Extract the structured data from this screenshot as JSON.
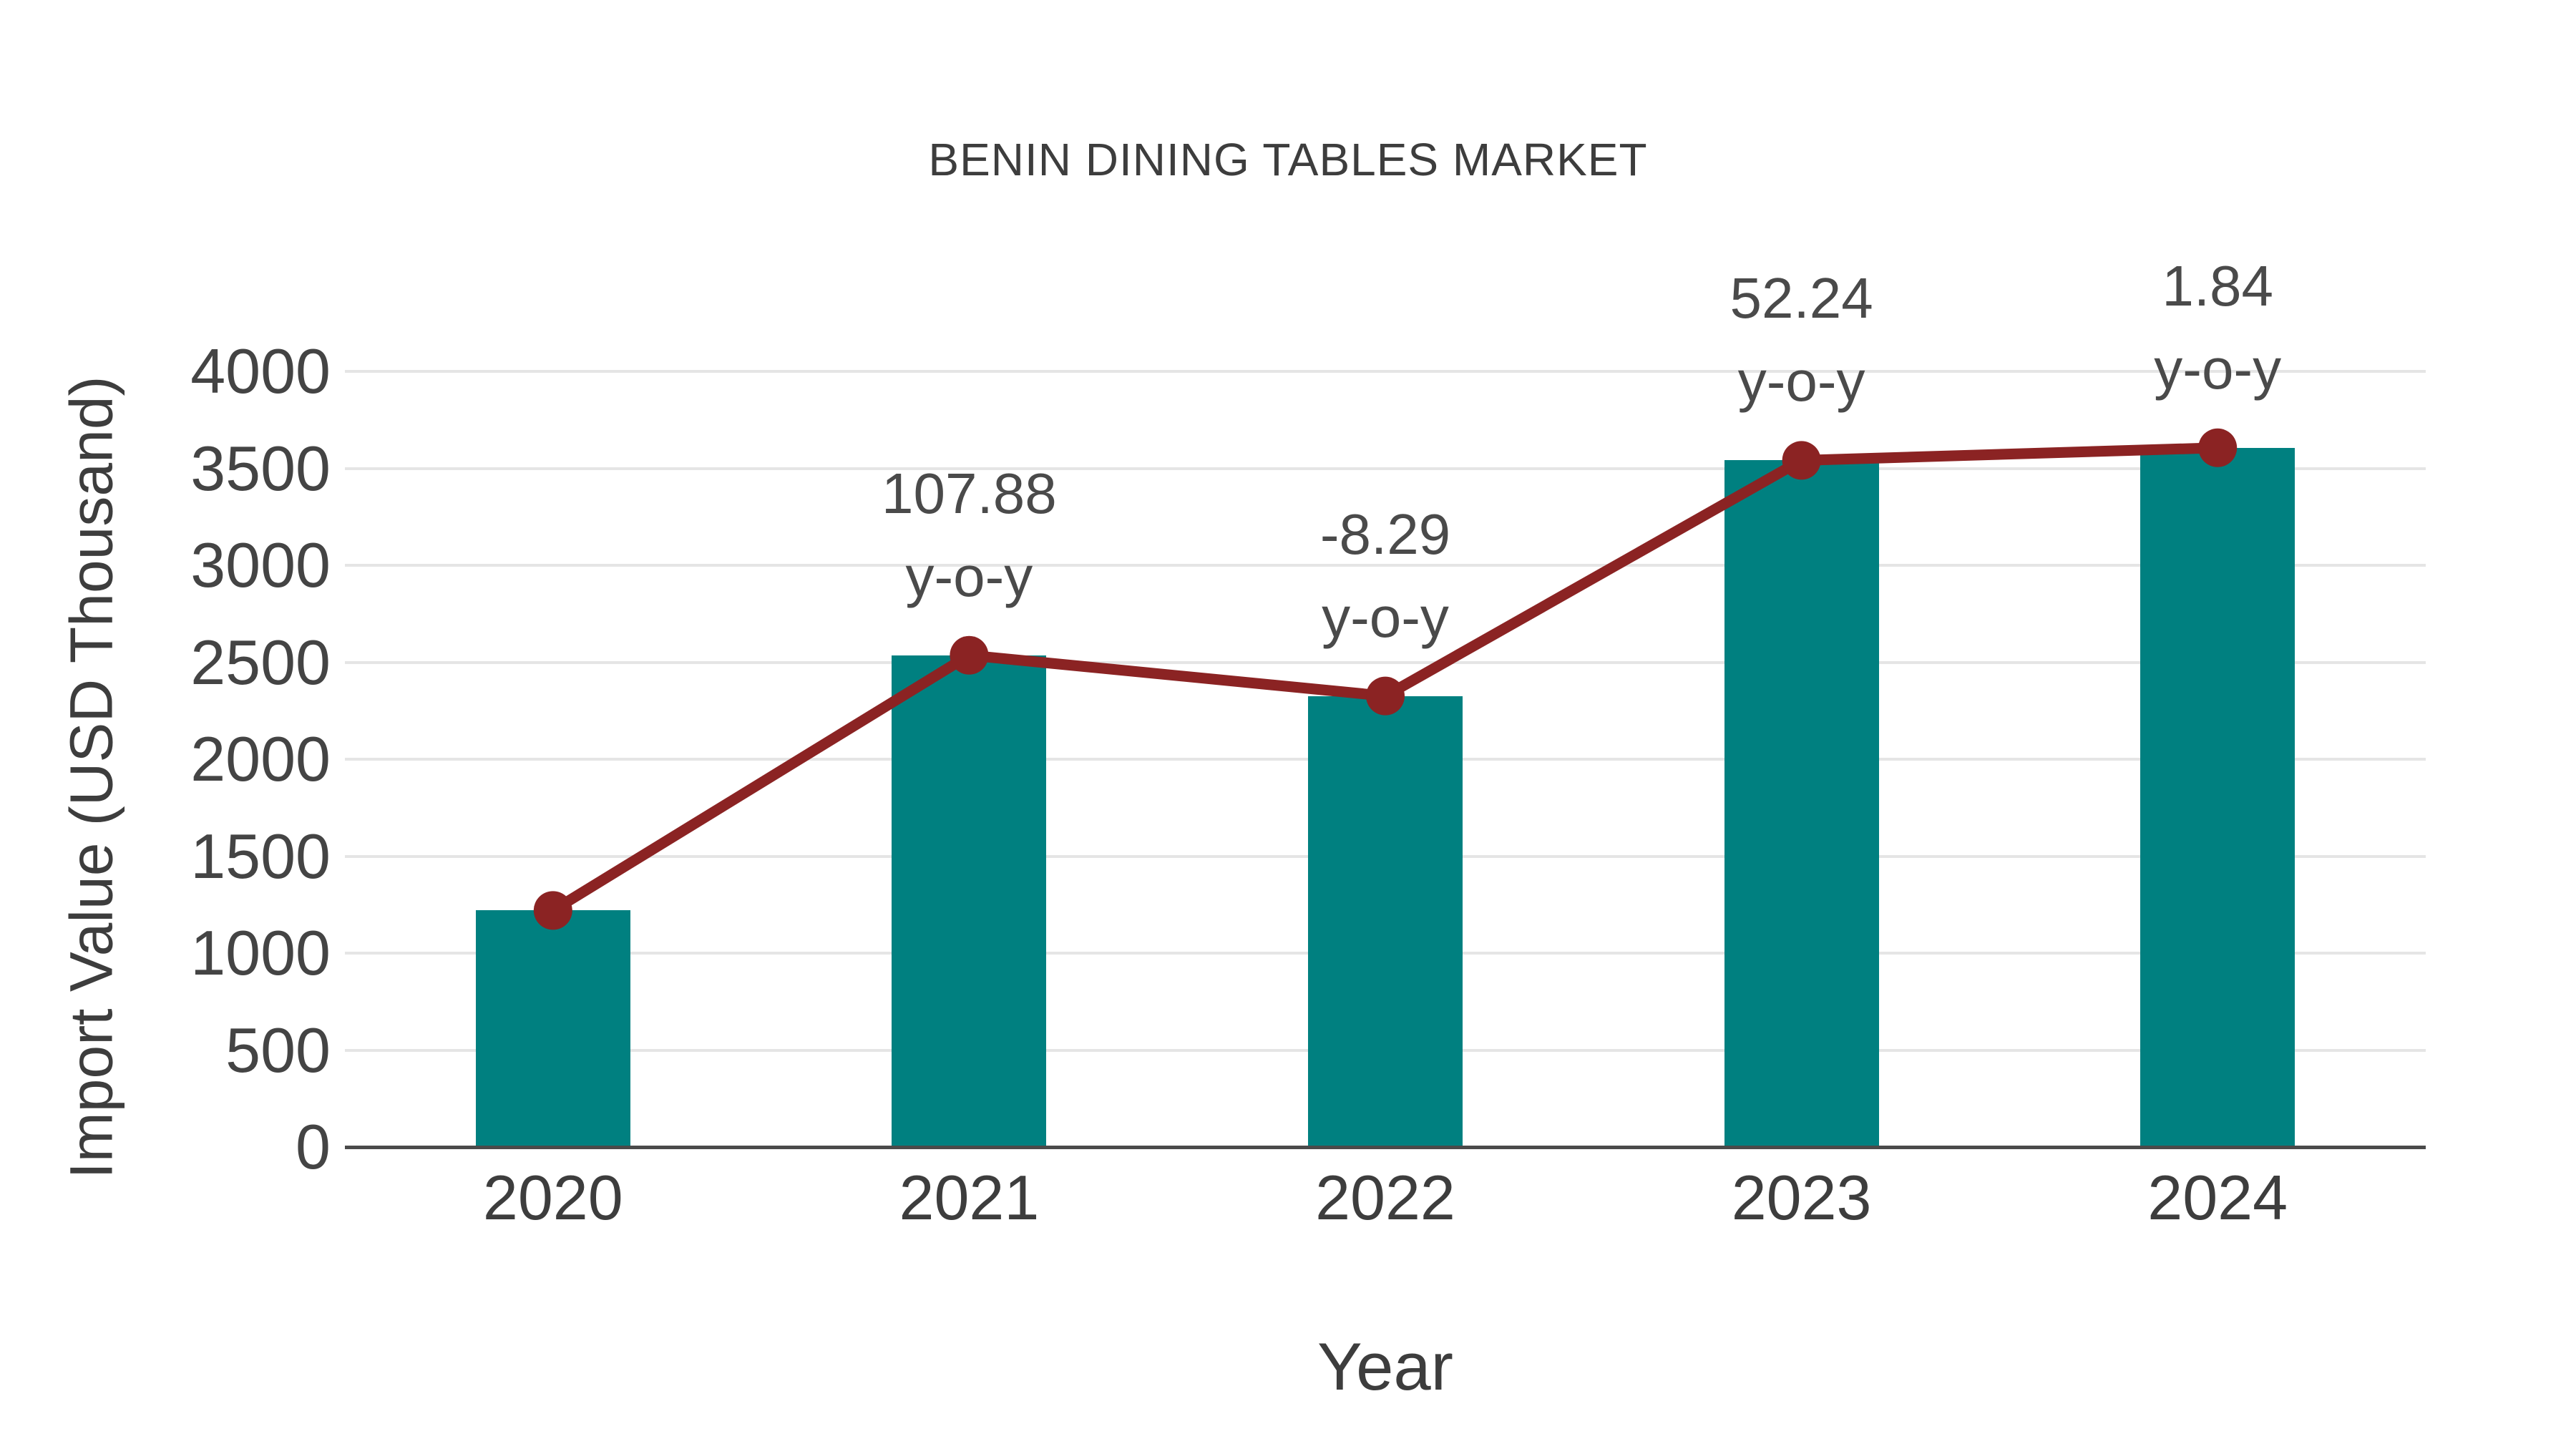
{
  "chart_data": {
    "type": "bar+line",
    "title": "BENIN DINING TABLES MARKET",
    "xlabel": "Year",
    "ylabel": "Import Value (USD Thousand)",
    "categories": [
      "2020",
      "2021",
      "2022",
      "2023",
      "2024"
    ],
    "series": [
      {
        "name": "import-value-bars",
        "type": "bar",
        "values": [
          1220,
          2536,
          2326,
          3541,
          3606
        ]
      },
      {
        "name": "import-value-trend",
        "type": "line",
        "values": [
          1220,
          2536,
          2326,
          3541,
          3606
        ]
      }
    ],
    "annotations": [
      {
        "category": "2021",
        "lines": [
          "107.88",
          "y-o-y"
        ]
      },
      {
        "category": "2022",
        "lines": [
          "-8.29",
          "y-o-y"
        ]
      },
      {
        "category": "2023",
        "lines": [
          "52.24",
          "y-o-y"
        ]
      },
      {
        "category": "2024",
        "lines": [
          "1.84",
          "y-o-y"
        ]
      }
    ],
    "yticks": [
      0,
      500,
      1000,
      1500,
      2000,
      2500,
      3000,
      3500,
      4000
    ],
    "ylim": [
      0,
      4000
    ],
    "grid": true,
    "legend_position": "none",
    "colors": {
      "bar": "#008080",
      "line": "#8b2323",
      "marker": "#8b2323",
      "text": "#3d3d3d",
      "tick_text": "#444444",
      "gridline": "#e5e5e5",
      "axis_line": "#4a4a4a",
      "background": "#ffffff"
    }
  }
}
